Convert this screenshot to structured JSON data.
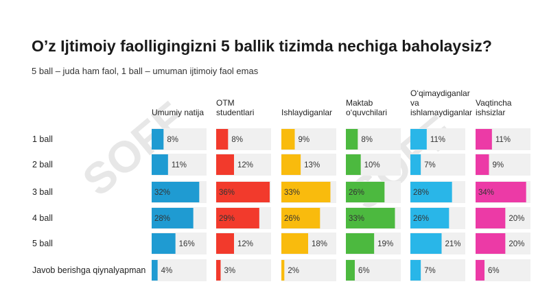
{
  "title": "O’z Ijtimoiy faolligingizni 5 ballik tizimda nechiga baholaysiz?",
  "subtitle": "5 ball – juda ham faol, 1 ball – umuman ijtimoiy faol emas",
  "watermark": "SOFF",
  "chart_data": {
    "type": "bar",
    "orientation": "horizontal",
    "layout": "small-multiples",
    "value_suffix": "%",
    "categories": [
      "1 ball",
      "2 ball",
      "3 ball",
      "4 ball",
      "5 ball",
      "Javob berishga qiynalyapman"
    ],
    "xlim": [
      0,
      36
    ],
    "grid": false,
    "legend": "none",
    "series": [
      {
        "name": "Umumiy natija",
        "name_lines": [
          "Umumiy natija"
        ],
        "color": "#1f9bd2",
        "values": [
          8,
          11,
          32,
          28,
          16,
          4
        ]
      },
      {
        "name": "OTM studentlari",
        "name_lines": [
          "OTM",
          "studentlari"
        ],
        "color": "#f23a2c",
        "values": [
          8,
          12,
          36,
          29,
          12,
          3
        ]
      },
      {
        "name": "Ishlaydiganlar",
        "name_lines": [
          "Ishlaydiganlar"
        ],
        "color": "#f9bb0d",
        "values": [
          9,
          13,
          33,
          26,
          18,
          2
        ]
      },
      {
        "name": "Maktab o‘quvchilari",
        "name_lines": [
          "Maktab",
          "o‘quvchilari"
        ],
        "color": "#4cb93f",
        "values": [
          8,
          10,
          26,
          33,
          19,
          6
        ]
      },
      {
        "name": "O‘qimaydiganlar va ishlamaydiganlar",
        "name_lines": [
          "O‘qimaydiganlar",
          "va",
          "ishlamaydiganlar"
        ],
        "color": "#29b6e8",
        "values": [
          11,
          7,
          28,
          26,
          21,
          7
        ]
      },
      {
        "name": "Vaqtincha ishsizlar",
        "name_lines": [
          "Vaqtincha",
          "ishsizlar"
        ],
        "color": "#ec3aa6",
        "values": [
          11,
          9,
          34,
          20,
          20,
          6
        ]
      }
    ]
  }
}
